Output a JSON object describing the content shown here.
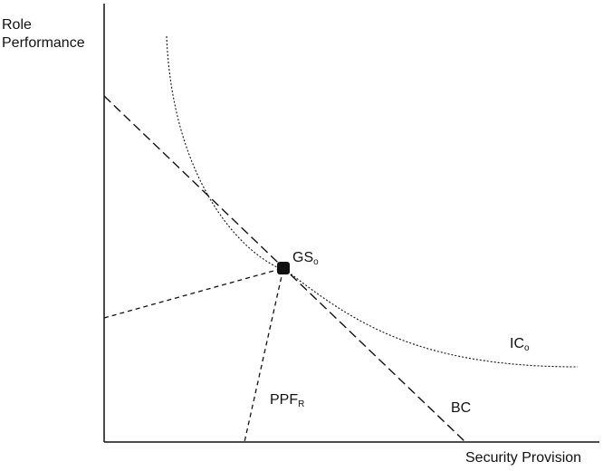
{
  "axes": {
    "y_label_line1": "Role",
    "y_label_line2": "Performance",
    "x_label": "Security Provision"
  },
  "labels": {
    "equilibrium_main": "GS",
    "equilibrium_sub": "o",
    "indifference_main": "IC",
    "indifference_sub": "o",
    "ppf_main": "PPF",
    "ppf_sub": "R",
    "budget": "BC"
  },
  "colors": {
    "ink": "#111111",
    "background": "#ffffff"
  }
}
